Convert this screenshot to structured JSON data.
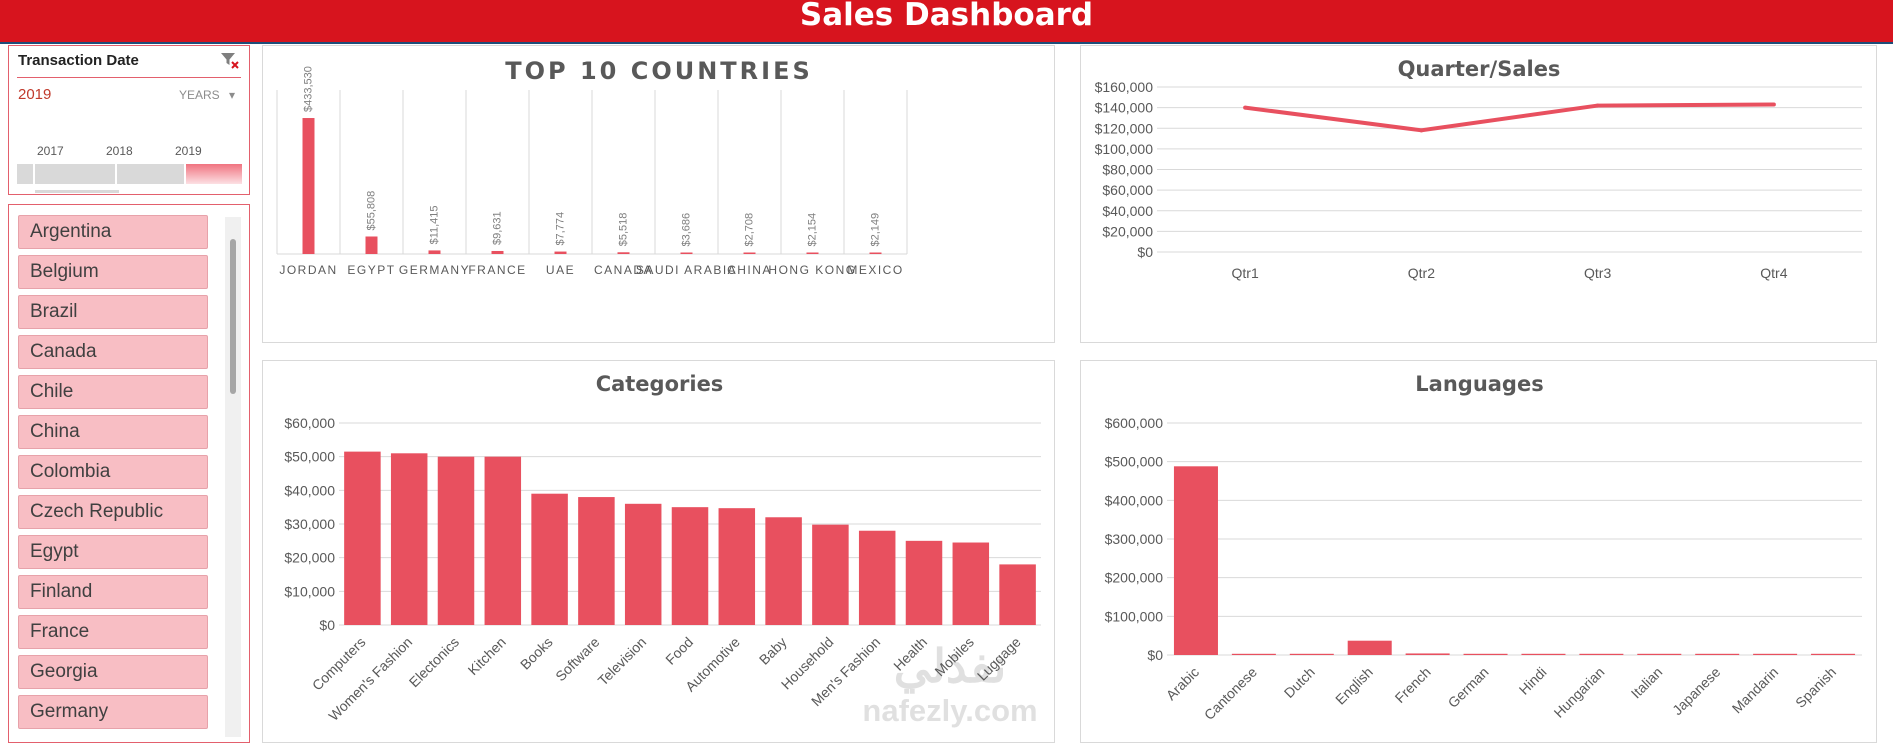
{
  "header": {
    "title": "Sales Dashboard"
  },
  "slicer": {
    "header": "Transaction Date",
    "selected": "2019",
    "level": "YEARS",
    "years": [
      "2017",
      "2018",
      "2019"
    ],
    "active_year": "2019"
  },
  "countries": [
    "Argentina",
    "Belgium",
    "Brazil",
    "Canada",
    "Chile",
    "China",
    "Colombia",
    "Czech Republic",
    "Egypt",
    "Finland",
    "France",
    "Georgia",
    "Germany"
  ],
  "watermark": {
    "arabic": "نفذلي",
    "latin": "nafezly.com"
  },
  "colors": {
    "accent": "#d7141e",
    "bar": "#e8505f",
    "slicer_item": "#f8bec4"
  },
  "chart_data": [
    {
      "id": "top10",
      "type": "bar",
      "title": "TOP 10 COUNTRIES",
      "categories": [
        "JORDAN",
        "EGYPT",
        "GERMANY",
        "FRANCE",
        "UAE",
        "CANADA",
        "SAUDI ARABIA",
        "CHINA",
        "HONG KONG",
        "MEXICO"
      ],
      "values": [
        433530,
        55808,
        11415,
        9631,
        7774,
        5518,
        3686,
        2708,
        2154,
        2149
      ],
      "data_labels": [
        "$433,530",
        "$55,808",
        "$11,415",
        "$9,631",
        "$7,774",
        "$5,518",
        "$3,686",
        "$2,708",
        "$2,154",
        "$2,149"
      ],
      "ylim": [
        0,
        440000
      ],
      "grid": "vertical"
    },
    {
      "id": "quarter",
      "type": "line",
      "title": "Quarter/Sales",
      "categories": [
        "Qtr1",
        "Qtr2",
        "Qtr3",
        "Qtr4"
      ],
      "values": [
        140000,
        118000,
        142000,
        143000
      ],
      "ylim": [
        0,
        160000
      ],
      "yticks": [
        "$0",
        "$20,000",
        "$40,000",
        "$60,000",
        "$80,000",
        "$100,000",
        "$120,000",
        "$140,000",
        "$160,000"
      ],
      "grid": "horizontal"
    },
    {
      "id": "categories",
      "type": "bar",
      "title": "Categories",
      "categories": [
        "Computers",
        "Women's Fashion",
        "Electonics",
        "Kitchen",
        "Books",
        "Software",
        "Television",
        "Food",
        "Automotive",
        "Baby",
        "Household",
        "Men's Fashion",
        "Health",
        "Mobiles",
        "Luggage"
      ],
      "values": [
        51500,
        51000,
        50000,
        50000,
        39000,
        38000,
        36000,
        35000,
        34700,
        32000,
        29800,
        28000,
        25000,
        24500,
        18000
      ],
      "ylim": [
        0,
        60000
      ],
      "yticks": [
        "$0",
        "$10,000",
        "$20,000",
        "$30,000",
        "$40,000",
        "$50,000",
        "$60,000"
      ],
      "grid": "horizontal"
    },
    {
      "id": "languages",
      "type": "bar",
      "title": "Languages",
      "categories": [
        "Arabic",
        "Cantonese",
        "Dutch",
        "English",
        "French",
        "German",
        "Hindi",
        "Hungarian",
        "Italian",
        "Japanese",
        "Mandarin",
        "Spanish"
      ],
      "values": [
        488000,
        1500,
        1500,
        37000,
        4000,
        1500,
        1500,
        1500,
        1500,
        1500,
        1500,
        1500
      ],
      "ylim": [
        0,
        600000
      ],
      "yticks": [
        "$0",
        "$100,000",
        "$200,000",
        "$300,000",
        "$400,000",
        "$500,000",
        "$600,000"
      ],
      "grid": "horizontal"
    }
  ]
}
